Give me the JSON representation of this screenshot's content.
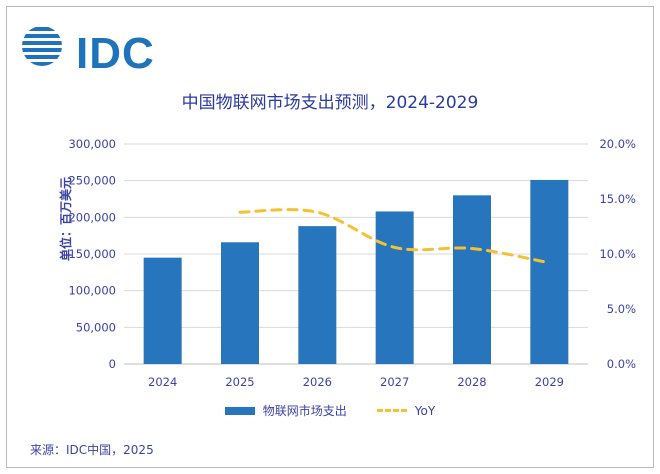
{
  "logo": {
    "text": "IDC"
  },
  "source": "来源：IDC中国，2025",
  "chart_data": {
    "type": "bar",
    "title": "中国物联网市场支出预测，2024-2029",
    "ylabel": "单位：百万美元",
    "categories": [
      "2024",
      "2025",
      "2026",
      "2027",
      "2028",
      "2029"
    ],
    "ylim": [
      0,
      300000
    ],
    "y_ticks": [
      "300,000",
      "250,000",
      "200,000",
      "150,000",
      "100,000",
      "50,000",
      "0"
    ],
    "y2lim": [
      0,
      20
    ],
    "y2_ticks": [
      "20.0%",
      "15.0%",
      "10.0%",
      "5.0%",
      "0.0%"
    ],
    "series": [
      {
        "name": "物联网市场支出",
        "type": "bar",
        "values": [
          145000,
          166000,
          188000,
          208000,
          230000,
          251000
        ]
      },
      {
        "name": "YoY",
        "type": "line",
        "axis": "right",
        "values": [
          null,
          13.8,
          13.8,
          10.6,
          10.5,
          9.2
        ]
      }
    ],
    "colors": {
      "bar": "#2675bd",
      "line": "#f2c232",
      "text": "#3b42a6",
      "grid": "#d9d9d9"
    },
    "legend_position": "bottom",
    "grid": true
  }
}
